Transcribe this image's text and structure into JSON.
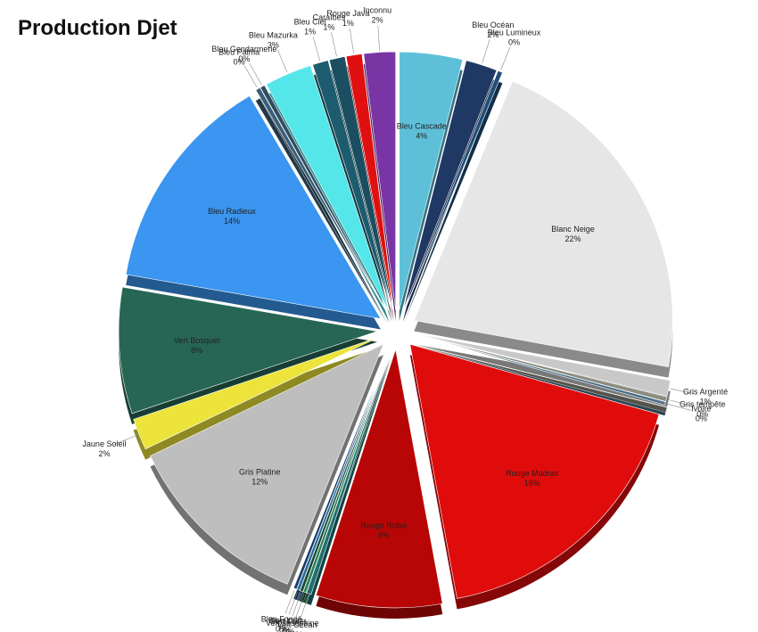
{
  "chart_data": {
    "type": "pie",
    "title": "Production Djet",
    "slices": [
      {
        "label": "Bleu Cascade",
        "pct_label": "4%",
        "value": 4,
        "color": "#5ec0d8"
      },
      {
        "label": "Bleu Océan",
        "pct_label": "2%",
        "value": 2,
        "color": "#1f3864"
      },
      {
        "label": "Bleu Lumineux",
        "pct_label": "0%",
        "value": 0.3,
        "color": "#1f4e79"
      },
      {
        "label": "Blanc Neige",
        "pct_label": "22%",
        "value": 22,
        "color": "#e6e6e6"
      },
      {
        "label": "Gris Argenté",
        "pct_label": "1%",
        "value": 1,
        "color": "#c8c8c8"
      },
      {
        "label": "Gris tempête",
        "pct_label": "0%",
        "value": 0.3,
        "color": "#8c8c80"
      },
      {
        "label": "Ivoire",
        "pct_label": "0%",
        "value": 0.2,
        "color": "#4a6f8a"
      },
      {
        "label": "Rouge Madras",
        "pct_label": "18%",
        "value": 18,
        "color": "#e00b0b"
      },
      {
        "label": "Rouge Rubis",
        "pct_label": "8%",
        "value": 8,
        "color": "#b80606"
      },
      {
        "label": "Vert Océan",
        "pct_label": "0%",
        "value": 0.3,
        "color": "#1f6f6f"
      },
      {
        "label": "Vert Joséphine",
        "pct_label": "",
        "value": 0.2,
        "color": "#2e7d5b"
      },
      {
        "label": "Vert Forêt",
        "pct_label": "0%",
        "value": 0.2,
        "color": "#1a4d2e"
      },
      {
        "label": "Bleu Lido",
        "pct_label": "0%",
        "value": 0.2,
        "color": "#2b6ca3"
      },
      {
        "label": "Bleu Foncé",
        "pct_label": "0%",
        "value": 0.2,
        "color": "#1a3d66"
      },
      {
        "label": "Gris Platine",
        "pct_label": "12%",
        "value": 12,
        "color": "#bebebe"
      },
      {
        "label": "Jaune Soleil",
        "pct_label": "2%",
        "value": 2,
        "color": "#ece43a"
      },
      {
        "label": "Vert Bosquet",
        "pct_label": "8%",
        "value": 8,
        "color": "#276655"
      },
      {
        "label": "Bleu Radieux",
        "pct_label": "14%",
        "value": 14,
        "color": "#3a96f0"
      },
      {
        "label": "Bleu Palma",
        "pct_label": "0%",
        "value": 0.3,
        "color": "#3a5f7a"
      },
      {
        "label": "Bleu Gendarmerie",
        "pct_label": "0%",
        "value": 0.3,
        "color": "#2c4f63"
      },
      {
        "label": "Bleu Mazurka",
        "pct_label": "3%",
        "value": 3,
        "color": "#55e6ea"
      },
      {
        "label": "Bleu Ciel",
        "pct_label": "1%",
        "value": 1,
        "color": "#1c5c6e"
      },
      {
        "label": "Caraïbes",
        "pct_label": "1%",
        "value": 1,
        "color": "#1a4e60"
      },
      {
        "label": "Rouge Java",
        "pct_label": "1%",
        "value": 1,
        "color": "#e01010"
      },
      {
        "label": "Inconnu",
        "pct_label": "2%",
        "value": 2,
        "color": "#7a35a4"
      }
    ]
  }
}
